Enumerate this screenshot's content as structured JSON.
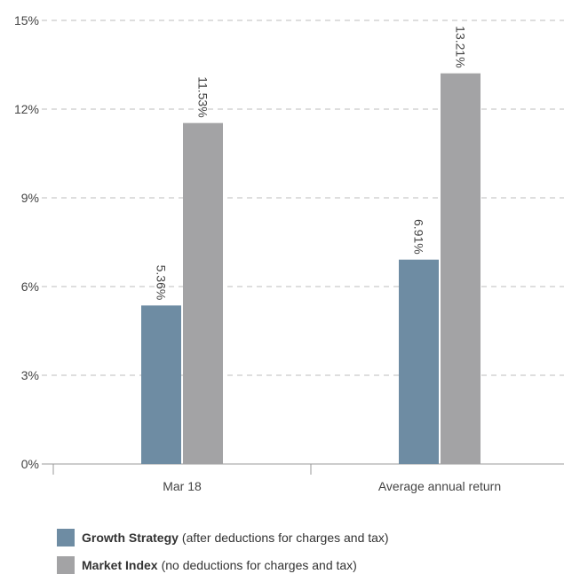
{
  "chart_data": {
    "type": "bar",
    "categories": [
      "Mar 18",
      "Average annual return"
    ],
    "series": [
      {
        "name": "Growth Strategy",
        "values": [
          5.36,
          6.91
        ],
        "color": "#6e8ca3",
        "data_labels": [
          "5.36%",
          "6.91%"
        ]
      },
      {
        "name": "Market Index",
        "values": [
          11.53,
          13.21
        ],
        "color": "#a3a3a5",
        "data_labels": [
          "11.53%",
          "13.21%"
        ]
      }
    ],
    "yticks": [
      0,
      3,
      6,
      9,
      12,
      15
    ],
    "ytick_labels": [
      "0%",
      "3%",
      "6%",
      "9%",
      "12%",
      "15%"
    ],
    "ylim": [
      0,
      15
    ],
    "grid": true,
    "legend_position": "bottom-left"
  },
  "legend": [
    {
      "name": "Growth Strategy",
      "note": "(after deductions for charges and tax)",
      "color": "#6e8ca3"
    },
    {
      "name": "Market Index",
      "note": "(no deductions for charges and tax)",
      "color": "#a3a3a5"
    }
  ]
}
